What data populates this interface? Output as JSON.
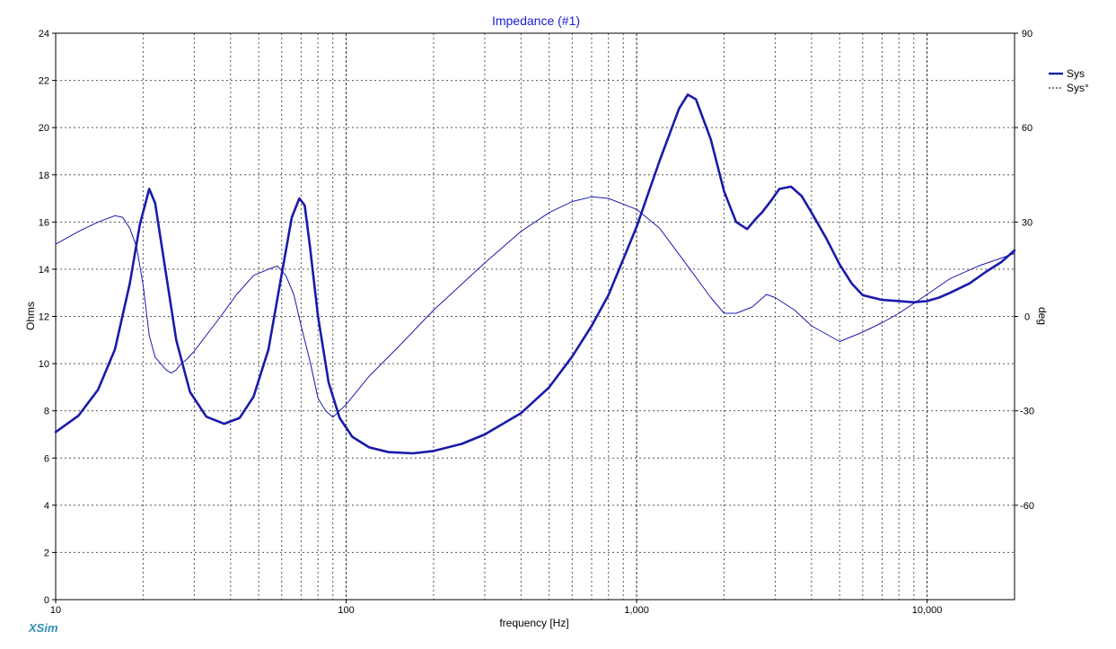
{
  "brand": "XSim",
  "colors": {
    "series": "#1a1aaa",
    "title": "#1a1ad6",
    "grid": "#555555",
    "brand": "#2b8fb5"
  },
  "chart_data": {
    "type": "line",
    "title": "Impedance (#1)",
    "xlabel": "frequency [Hz]",
    "ylabel": "Ohms",
    "y2label": "deg",
    "xscale": "log",
    "xlim": [
      10,
      20000
    ],
    "ylim": [
      0,
      24
    ],
    "y2lim": [
      -90,
      90
    ],
    "grid": true,
    "legend_position": "top-right",
    "x_ticks": [
      {
        "value": 10,
        "label": "10"
      },
      {
        "value": 100,
        "label": "100"
      },
      {
        "value": 1000,
        "label": "1,000"
      },
      {
        "value": 10000,
        "label": "10,000"
      }
    ],
    "y_ticks": [
      0,
      2,
      4,
      6,
      8,
      10,
      12,
      14,
      16,
      18,
      20,
      22,
      24
    ],
    "y2_ticks": [
      -60,
      -30,
      0,
      30,
      60,
      90
    ],
    "series": [
      {
        "name": "Sys",
        "axis": "left",
        "style": "solid-thick",
        "x": [
          10,
          12,
          14,
          16,
          18,
          19.5,
          21,
          22,
          23.5,
          26,
          29,
          33,
          38,
          43,
          48,
          54,
          60,
          65,
          69,
          72,
          75,
          80,
          87,
          95,
          105,
          120,
          140,
          170,
          200,
          250,
          300,
          400,
          500,
          600,
          700,
          800,
          1000,
          1200,
          1400,
          1500,
          1600,
          1800,
          2000,
          2200,
          2400,
          2600,
          2700,
          2900,
          3100,
          3400,
          3700,
          4000,
          4500,
          5000,
          5500,
          6000,
          7000,
          8000,
          9000,
          10000,
          11000,
          12000,
          14000,
          16000,
          18000,
          20000
        ],
        "values": [
          7.1,
          7.8,
          8.9,
          10.6,
          13.4,
          15.9,
          17.4,
          16.8,
          14.5,
          11.0,
          8.8,
          7.75,
          7.45,
          7.7,
          8.6,
          10.6,
          13.8,
          16.2,
          17.0,
          16.7,
          15.0,
          12.0,
          9.2,
          7.7,
          6.9,
          6.45,
          6.25,
          6.2,
          6.3,
          6.6,
          7.0,
          7.9,
          9.0,
          10.3,
          11.6,
          12.9,
          15.8,
          18.6,
          20.8,
          21.4,
          21.2,
          19.5,
          17.3,
          16.0,
          15.7,
          16.2,
          16.4,
          16.9,
          17.4,
          17.5,
          17.1,
          16.4,
          15.3,
          14.2,
          13.4,
          12.9,
          12.7,
          12.65,
          12.6,
          12.65,
          12.8,
          13.0,
          13.4,
          13.9,
          14.3,
          14.8
        ]
      },
      {
        "name": "Sys°",
        "axis": "right",
        "style": "thin",
        "x": [
          10,
          12,
          14,
          16,
          17,
          18,
          19,
          20,
          21,
          22,
          23,
          24,
          25,
          26,
          27,
          28,
          30,
          33,
          37,
          42,
          48,
          54,
          58,
          62,
          66,
          70,
          75,
          80,
          85,
          90,
          100,
          120,
          150,
          200,
          300,
          400,
          500,
          600,
          700,
          800,
          1000,
          1200,
          1500,
          1800,
          2000,
          2200,
          2500,
          2800,
          3000,
          3500,
          4000,
          5000,
          6000,
          7000,
          8000,
          10000,
          12000,
          15000,
          20000
        ],
        "values": [
          23,
          27,
          30,
          32,
          31.5,
          28,
          22,
          10,
          -6,
          -13,
          -15,
          -17,
          -18,
          -17,
          -15,
          -14,
          -11,
          -6,
          0,
          7,
          13,
          15,
          16,
          13,
          7,
          -3,
          -14,
          -26,
          -30,
          -32,
          -28,
          -19,
          -10,
          2,
          17,
          27,
          33,
          36.5,
          38,
          37.5,
          34,
          28,
          16,
          6,
          1,
          1,
          3,
          7,
          6,
          2,
          -3,
          -8,
          -5,
          -2,
          1,
          7,
          12,
          16,
          20
        ]
      }
    ]
  }
}
